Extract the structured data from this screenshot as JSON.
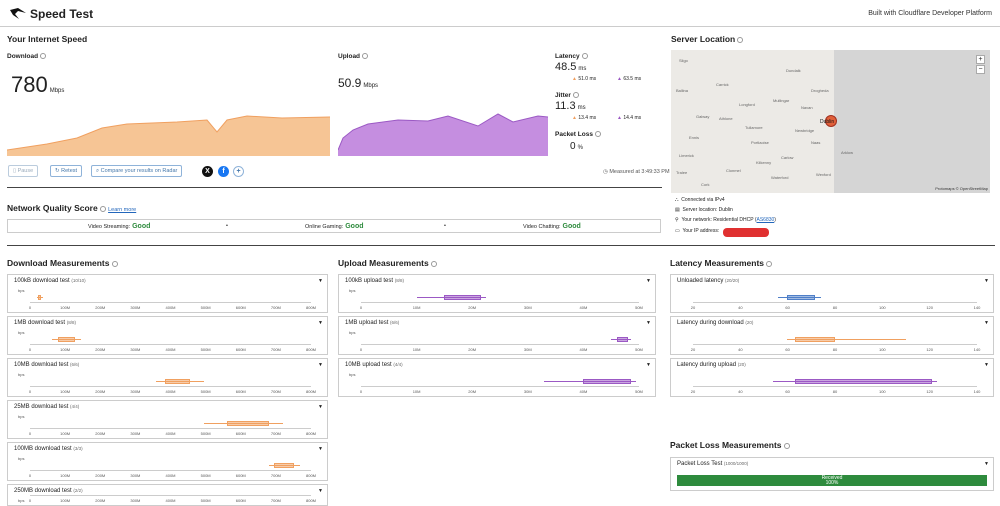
{
  "header": {
    "title": "Speed Test",
    "built_with": "Built with Cloudflare Developer Platform"
  },
  "speed": {
    "section_title": "Your Internet Speed",
    "download_label": "Download",
    "download_value": "780",
    "download_unit": "Mbps",
    "upload_label": "Upload",
    "upload_value": "50.9",
    "upload_unit": "Mbps",
    "latency_label": "Latency",
    "latency_value": "48.5",
    "latency_unit": "ms",
    "latency_down": "51.0 ms",
    "latency_up": "63.5 ms",
    "jitter_label": "Jitter",
    "jitter_value": "11.3",
    "jitter_unit": "ms",
    "jitter_down": "13.4 ms",
    "jitter_up": "14.4 ms",
    "loss_label": "Packet Loss",
    "loss_value": "0",
    "loss_unit": "%",
    "measured_at": "Measured at 3:49:33 PM"
  },
  "buttons": {
    "pause": "Pause",
    "retest": "Retest",
    "compare": "Compare your results on Radar"
  },
  "network_quality": {
    "title": "Network Quality Score",
    "learn_more": "Learn more",
    "items": [
      {
        "label": "Video Streaming:",
        "value": "Good"
      },
      {
        "label": "Online Gaming:",
        "value": "Good"
      },
      {
        "label": "Video Chatting:",
        "value": "Good"
      }
    ]
  },
  "server": {
    "title": "Server Location",
    "connected": "Connected via IPv4",
    "location": "Server location: Dublin",
    "network": "Your network: Residential DHCP (",
    "asn": "AS6830",
    "network_close": ")",
    "ip": "Your IP address:",
    "map_attrib": "Protomaps © OpenStreetMap",
    "towns": [
      "Sligo",
      "Dundalk",
      "Ballina",
      "Carrick",
      "Longford",
      "Mullingar",
      "Drogheda",
      "Navan",
      "Tullamore",
      "Galway",
      "Athlone",
      "Portlaoise",
      "Kilkenny",
      "Carlow",
      "Wexford",
      "Limerick",
      "Ennis",
      "Clonmel",
      "Newbridge",
      "Naas",
      "Arklow",
      "Waterford",
      "Tralee",
      "Cork",
      "Dublin"
    ]
  },
  "download_meas": {
    "title": "Download Measurements",
    "unit": "bps",
    "ticks": [
      "0",
      "100M",
      "200M",
      "300M",
      "400M",
      "500M",
      "600M",
      "700M",
      "800M"
    ],
    "tests": [
      {
        "label": "100kB download test",
        "count": "(10/10)"
      },
      {
        "label": "1MB download test",
        "count": "(8/8)"
      },
      {
        "label": "10MB download test",
        "count": "(6/6)"
      },
      {
        "label": "25MB download test",
        "count": "(4/4)"
      },
      {
        "label": "100MB download test",
        "count": "(3/3)"
      },
      {
        "label": "250MB download test",
        "count": "(2/2)"
      }
    ]
  },
  "upload_meas": {
    "title": "Upload Measurements",
    "unit": "bps",
    "ticks": [
      "0",
      "10M",
      "20M",
      "30M",
      "40M",
      "50M"
    ],
    "tests": [
      {
        "label": "100kB upload test",
        "count": "(8/8)"
      },
      {
        "label": "1MB upload test",
        "count": "(6/6)"
      },
      {
        "label": "10MB upload test",
        "count": "(4/4)"
      }
    ]
  },
  "latency_meas": {
    "title": "Latency Measurements",
    "ticks": [
      "20",
      "40",
      "60",
      "80",
      "100",
      "120",
      "140"
    ],
    "tests": [
      {
        "label": "Unloaded latency",
        "count": "(20/20)"
      },
      {
        "label": "Latency during download",
        "count": "(20)"
      },
      {
        "label": "Latency during upload",
        "count": "(20)"
      }
    ]
  },
  "packet_loss": {
    "title": "Packet Loss Measurements",
    "test_label": "Packet Loss Test",
    "count": "(1000/1000)",
    "received_label": "Received",
    "received_pct": "100%"
  }
}
